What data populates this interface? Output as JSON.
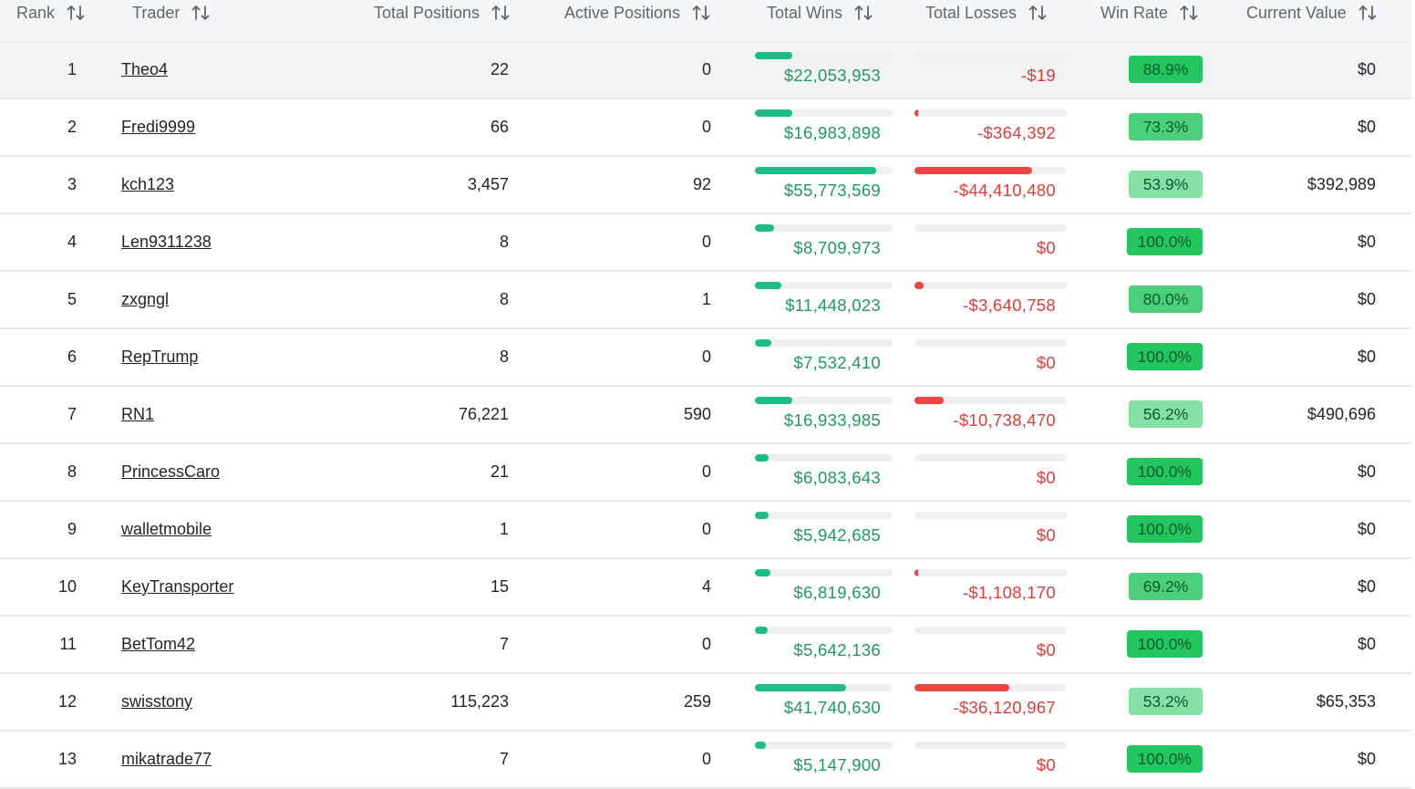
{
  "colors": {
    "header_bg": "#f4f5f6",
    "wins_bar": "#1ebc86",
    "wins_text": "#1f9a5d",
    "losses_bar": "#ef4444",
    "losses_text": "#e23b3b",
    "win_rate_high": "#22c55e",
    "win_rate_mid": "#4ccf7a",
    "win_rate_low": "#86e0a6"
  },
  "columns": [
    {
      "key": "rank",
      "label": "Rank",
      "icon": "sort-icon"
    },
    {
      "key": "trader",
      "label": "Trader",
      "icon": "sort-icon"
    },
    {
      "key": "total_positions",
      "label": "Total Positions",
      "icon": "sort-icon"
    },
    {
      "key": "active_positions",
      "label": "Active Positions",
      "icon": "sort-icon"
    },
    {
      "key": "total_wins",
      "label": "Total Wins",
      "icon": "sort-icon"
    },
    {
      "key": "total_losses",
      "label": "Total Losses",
      "icon": "sort-icon"
    },
    {
      "key": "win_rate",
      "label": "Win Rate",
      "icon": "sort-icon"
    },
    {
      "key": "current_value",
      "label": "Current Value",
      "icon": "sort-icon"
    }
  ],
  "rows": [
    {
      "rank": "1",
      "trader": "Theo4",
      "total_positions": "22",
      "active_positions": "0",
      "total_wins": "$22,053,953",
      "wins_bar": 0.27,
      "total_losses": "-$19",
      "losses_bar": 0.0,
      "win_rate": "88.9%",
      "win_rate_value": 88.9,
      "current_value": "$0"
    },
    {
      "rank": "2",
      "trader": "Fredi9999",
      "total_positions": "66",
      "active_positions": "0",
      "total_wins": "$16,983,898",
      "wins_bar": 0.27,
      "total_losses": "-$364,392",
      "losses_bar": 0.01,
      "win_rate": "73.3%",
      "win_rate_value": 73.3,
      "current_value": "$0"
    },
    {
      "rank": "3",
      "trader": "kch123",
      "total_positions": "3,457",
      "active_positions": "92",
      "total_wins": "$55,773,569",
      "wins_bar": 0.88,
      "total_losses": "-$44,410,480",
      "losses_bar": 0.77,
      "win_rate": "53.9%",
      "win_rate_value": 53.9,
      "current_value": "$392,989"
    },
    {
      "rank": "4",
      "trader": "Len9311238",
      "total_positions": "8",
      "active_positions": "0",
      "total_wins": "$8,709,973",
      "wins_bar": 0.14,
      "total_losses": "$0",
      "losses_bar": 0.0,
      "win_rate": "100.0%",
      "win_rate_value": 100.0,
      "current_value": "$0"
    },
    {
      "rank": "5",
      "trader": "zxgngl",
      "total_positions": "8",
      "active_positions": "1",
      "total_wins": "$11,448,023",
      "wins_bar": 0.19,
      "total_losses": "-$3,640,758",
      "losses_bar": 0.06,
      "win_rate": "80.0%",
      "win_rate_value": 80.0,
      "current_value": "$0"
    },
    {
      "rank": "6",
      "trader": "RepTrump",
      "total_positions": "8",
      "active_positions": "0",
      "total_wins": "$7,532,410",
      "wins_bar": 0.12,
      "total_losses": "$0",
      "losses_bar": 0.0,
      "win_rate": "100.0%",
      "win_rate_value": 100.0,
      "current_value": "$0"
    },
    {
      "rank": "7",
      "trader": "RN1",
      "total_positions": "76,221",
      "active_positions": "590",
      "total_wins": "$16,933,985",
      "wins_bar": 0.27,
      "total_losses": "-$10,738,470",
      "losses_bar": 0.19,
      "win_rate": "56.2%",
      "win_rate_value": 56.2,
      "current_value": "$490,696"
    },
    {
      "rank": "8",
      "trader": "PrincessCaro",
      "total_positions": "21",
      "active_positions": "0",
      "total_wins": "$6,083,643",
      "wins_bar": 0.1,
      "total_losses": "$0",
      "losses_bar": 0.0,
      "win_rate": "100.0%",
      "win_rate_value": 100.0,
      "current_value": "$0"
    },
    {
      "rank": "9",
      "trader": "walletmobile",
      "total_positions": "1",
      "active_positions": "0",
      "total_wins": "$5,942,685",
      "wins_bar": 0.1,
      "total_losses": "$0",
      "losses_bar": 0.0,
      "win_rate": "100.0%",
      "win_rate_value": 100.0,
      "current_value": "$0"
    },
    {
      "rank": "10",
      "trader": "KeyTransporter",
      "total_positions": "15",
      "active_positions": "4",
      "total_wins": "$6,819,630",
      "wins_bar": 0.11,
      "total_losses": "-$1,108,170",
      "losses_bar": 0.015,
      "win_rate": "69.2%",
      "win_rate_value": 69.2,
      "current_value": "$0"
    },
    {
      "rank": "11",
      "trader": "BetTom42",
      "total_positions": "7",
      "active_positions": "0",
      "total_wins": "$5,642,136",
      "wins_bar": 0.09,
      "total_losses": "$0",
      "losses_bar": 0.0,
      "win_rate": "100.0%",
      "win_rate_value": 100.0,
      "current_value": "$0"
    },
    {
      "rank": "12",
      "trader": "swisstony",
      "total_positions": "115,223",
      "active_positions": "259",
      "total_wins": "$41,740,630",
      "wins_bar": 0.66,
      "total_losses": "-$36,120,967",
      "losses_bar": 0.62,
      "win_rate": "53.2%",
      "win_rate_value": 53.2,
      "current_value": "$65,353"
    },
    {
      "rank": "13",
      "trader": "mikatrade77",
      "total_positions": "7",
      "active_positions": "0",
      "total_wins": "$5,147,900",
      "wins_bar": 0.08,
      "total_losses": "$0",
      "losses_bar": 0.0,
      "win_rate": "100.0%",
      "win_rate_value": 100.0,
      "current_value": "$0"
    }
  ]
}
